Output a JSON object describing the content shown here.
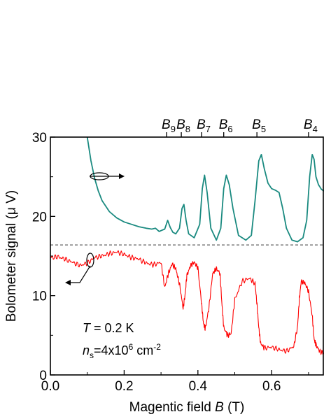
{
  "chart_data": {
    "type": "line",
    "xlabel": {
      "main": "Magentic field ",
      "var": "B",
      "unit": " (T)"
    },
    "ylabel": {
      "main": "Bolometer signal (",
      "mu": "μ",
      "unit": " V)"
    },
    "xlim": [
      0.0,
      0.74
    ],
    "ylim": [
      0,
      30
    ],
    "x_ticks": [
      "0.0",
      "0.2",
      "0.4",
      "0.6"
    ],
    "x_tick_values": [
      0.0,
      0.2,
      0.4,
      0.6
    ],
    "y_ticks": [
      "0",
      "10",
      "20",
      "30"
    ],
    "y_tick_values": [
      0,
      10,
      20,
      30
    ],
    "grid": false,
    "reference_line": {
      "y": 16.4,
      "style": "dashed"
    },
    "top_markers": [
      {
        "letter": "B",
        "sub": "9",
        "x": 0.315
      },
      {
        "letter": "B",
        "sub": "8",
        "x": 0.355
      },
      {
        "letter": "B",
        "sub": "7",
        "x": 0.41
      },
      {
        "letter": "B",
        "sub": "6",
        "x": 0.47
      },
      {
        "letter": "B",
        "sub": "5",
        "x": 0.56
      },
      {
        "letter": "B",
        "sub": "4",
        "x": 0.7
      }
    ],
    "annotations": {
      "temperature": {
        "var": "T",
        "text": " = 0.2 K"
      },
      "density": {
        "var": "n",
        "sub": "s",
        "text": "=4x10",
        "sup": "6",
        "unit": " cm",
        "unit_sup": "-2"
      }
    },
    "series": [
      {
        "color": "#1a8a80",
        "x": [
          0.1,
          0.11,
          0.12,
          0.13,
          0.14,
          0.16,
          0.18,
          0.2,
          0.22,
          0.24,
          0.26,
          0.275,
          0.285,
          0.29,
          0.295,
          0.3,
          0.31,
          0.318,
          0.325,
          0.332,
          0.34,
          0.35,
          0.357,
          0.362,
          0.368,
          0.375,
          0.39,
          0.405,
          0.412,
          0.418,
          0.425,
          0.435,
          0.45,
          0.462,
          0.47,
          0.477,
          0.485,
          0.495,
          0.51,
          0.53,
          0.545,
          0.555,
          0.565,
          0.572,
          0.58,
          0.59,
          0.6,
          0.61,
          0.62,
          0.63,
          0.64,
          0.655,
          0.67,
          0.685,
          0.695,
          0.703,
          0.71,
          0.715,
          0.72,
          0.727,
          0.735,
          0.742
        ],
        "y": [
          30.0,
          27.0,
          24.8,
          23.2,
          22.0,
          20.6,
          19.8,
          19.3,
          19.0,
          18.7,
          18.5,
          18.4,
          18.5,
          18.3,
          18.1,
          18.2,
          18.4,
          19.5,
          18.6,
          18.0,
          17.8,
          18.5,
          21.0,
          21.5,
          19.5,
          17.8,
          17.3,
          19.0,
          23.5,
          25.2,
          23.0,
          18.5,
          17.0,
          18.5,
          23.5,
          25.2,
          24.0,
          21.0,
          17.6,
          17.0,
          17.6,
          22.0,
          27.0,
          27.8,
          26.0,
          24.2,
          23.5,
          23.3,
          23.0,
          21.0,
          18.5,
          17.0,
          16.8,
          17.3,
          19.5,
          25.0,
          27.8,
          27.2,
          25.0,
          24.0,
          23.4,
          23.2
        ]
      },
      {
        "color": "#ff0000",
        "x": [
          0.0,
          0.02,
          0.04,
          0.06,
          0.08,
          0.1,
          0.12,
          0.14,
          0.16,
          0.18,
          0.2,
          0.22,
          0.24,
          0.26,
          0.28,
          0.3,
          0.31,
          0.32,
          0.33,
          0.34,
          0.35,
          0.36,
          0.365,
          0.37,
          0.38,
          0.39,
          0.4,
          0.41,
          0.415,
          0.42,
          0.43,
          0.44,
          0.45,
          0.46,
          0.465,
          0.47,
          0.48,
          0.49,
          0.5,
          0.52,
          0.54,
          0.555,
          0.56,
          0.565,
          0.57,
          0.58,
          0.6,
          0.62,
          0.64,
          0.66,
          0.67,
          0.675,
          0.68,
          0.69,
          0.7,
          0.71,
          0.715,
          0.72,
          0.73,
          0.742
        ],
        "y": [
          14.8,
          14.9,
          14.6,
          14.2,
          13.8,
          14.1,
          14.8,
          15.0,
          15.3,
          15.5,
          15.2,
          14.8,
          14.6,
          14.1,
          13.9,
          14.2,
          11.0,
          12.8,
          14.0,
          13.4,
          11.5,
          8.4,
          10.0,
          12.5,
          13.8,
          14.2,
          13.5,
          9.0,
          6.5,
          5.8,
          8.5,
          12.8,
          13.4,
          12.8,
          9.0,
          6.0,
          5.0,
          5.2,
          9.5,
          11.8,
          12.2,
          11.5,
          9.0,
          6.0,
          4.0,
          3.4,
          3.5,
          3.2,
          3.0,
          3.6,
          6.0,
          9.5,
          11.8,
          11.6,
          10.5,
          7.5,
          4.5,
          3.8,
          3.0,
          2.7
        ]
      }
    ]
  }
}
